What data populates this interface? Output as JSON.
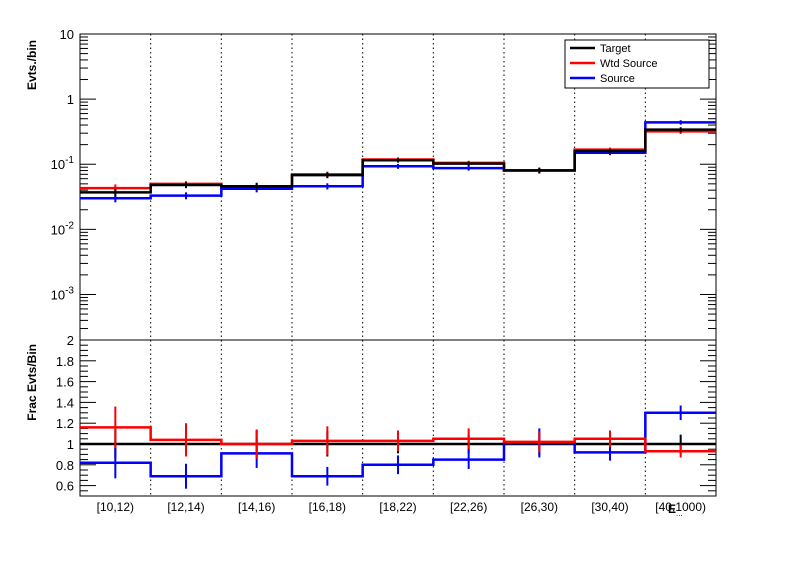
{
  "chart_data": [
    {
      "type": "line",
      "ylabel": "Evts./bin",
      "yscale": "log",
      "ylim": [
        0.0002,
        10
      ],
      "y_tick_labels": [
        "10^-3",
        "10^-2",
        "10^-1",
        "1",
        "10"
      ],
      "grid": "vertical dotted at bin edges",
      "legend_position": "top-right",
      "categories": [
        "[10,12)",
        "[12,14)",
        "[14,16)",
        "[16,18)",
        "[18,22)",
        "[22,26)",
        "[26,30)",
        "[30,40)",
        "[40,1000)"
      ],
      "series": [
        {
          "name": "Target",
          "color": "#000000",
          "values": [
            0.037,
            0.048,
            0.046,
            0.068,
            0.115,
            0.102,
            0.08,
            0.16,
            0.34
          ],
          "errors": [
            0.005,
            0.005,
            0.006,
            0.007,
            0.009,
            0.008,
            0.008,
            0.012,
            0.03
          ]
        },
        {
          "name": "Wtd Source",
          "color": "#ff0000",
          "values": [
            0.043,
            0.05,
            0.046,
            0.07,
            0.118,
            0.105,
            0.08,
            0.168,
            0.32
          ],
          "errors": [
            0.006,
            0.005,
            0.005,
            0.007,
            0.01,
            0.008,
            0.007,
            0.012,
            0.028
          ]
        },
        {
          "name": "Source",
          "color": "#0000ff",
          "values": [
            0.03,
            0.033,
            0.042,
            0.046,
            0.093,
            0.087,
            0.081,
            0.15,
            0.44
          ],
          "errors": [
            0.004,
            0.004,
            0.005,
            0.005,
            0.008,
            0.007,
            0.008,
            0.012,
            0.035
          ]
        }
      ]
    },
    {
      "type": "line",
      "ylabel": "Frac Evts/Bin",
      "ylim": [
        0.5,
        2.0
      ],
      "y_tick_labels": [
        "0.6",
        "0.8",
        "1",
        "1.2",
        "1.4",
        "1.6",
        "1.8",
        "2"
      ],
      "xlabel": "E_{...}",
      "categories": [
        "[10,12)",
        "[12,14)",
        "[14,16)",
        "[16,18)",
        "[18,22)",
        "[22,26)",
        "[26,30)",
        "[30,40)",
        "[40,1000)"
      ],
      "series": [
        {
          "name": "Target",
          "color": "#000000",
          "values": [
            1,
            1,
            1,
            1,
            1,
            1,
            1,
            1,
            1
          ],
          "errors": [
            0.14,
            0.11,
            0.13,
            0.12,
            0.09,
            0.09,
            0.11,
            0.08,
            0.09
          ]
        },
        {
          "name": "Wtd Source",
          "color": "#ff0000",
          "values": [
            1.16,
            1.04,
            1.0,
            1.03,
            1.03,
            1.05,
            1.02,
            1.05,
            0.93
          ],
          "errors": [
            0.2,
            0.16,
            0.14,
            0.14,
            0.1,
            0.1,
            0.1,
            0.08,
            0.06
          ]
        },
        {
          "name": "Source",
          "color": "#0000ff",
          "values": [
            0.82,
            0.69,
            0.91,
            0.69,
            0.8,
            0.85,
            1.01,
            0.92,
            1.3
          ],
          "errors": [
            0.15,
            0.12,
            0.14,
            0.09,
            0.09,
            0.09,
            0.14,
            0.08,
            0.07
          ]
        }
      ]
    }
  ]
}
